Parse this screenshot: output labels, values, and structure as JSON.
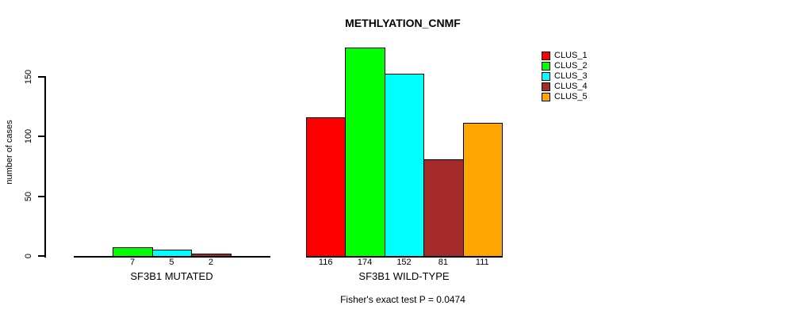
{
  "chart_data": {
    "type": "bar",
    "title": "METHLYATION_CNMF",
    "xlabel": "",
    "ylabel": "number of cases",
    "yticks": [
      0,
      50,
      100,
      150
    ],
    "ylim": [
      0,
      175
    ],
    "grid": false,
    "legend_position": "top-right",
    "categories": [
      "SF3B1 MUTATED",
      "SF3B1 WILD-TYPE"
    ],
    "series": [
      {
        "name": "CLUS_1",
        "color": "#FF0000",
        "values": [
          0,
          116
        ]
      },
      {
        "name": "CLUS_2",
        "color": "#00FF00",
        "values": [
          7,
          174
        ]
      },
      {
        "name": "CLUS_3",
        "color": "#00FFFF",
        "values": [
          5,
          152
        ]
      },
      {
        "name": "CLUS_4",
        "color": "#A52A2A",
        "values": [
          2,
          81
        ]
      },
      {
        "name": "CLUS_5",
        "color": "#FFA500",
        "values": [
          0,
          111
        ]
      }
    ],
    "bar_value_labels": {
      "visible": true,
      "show_zero": false
    },
    "annotation": "Fisher's exact test P = 0.0474",
    "colors": {
      "axis": "#000000",
      "bar_border": "#000000",
      "text": "#000000",
      "background": "#FFFFFF"
    }
  }
}
